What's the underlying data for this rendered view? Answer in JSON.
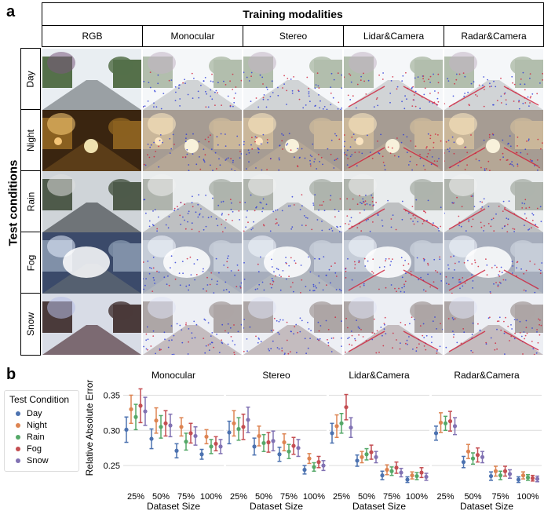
{
  "figure": {
    "panel_a_label": "a",
    "panel_b_label": "b",
    "header_title": "Training modalities",
    "side_title": "Test conditions",
    "training_modalities": [
      "RGB",
      "Monocular",
      "Stereo",
      "Lidar&Camera",
      "Radar&Camera"
    ],
    "test_conditions": [
      "Day",
      "Night",
      "Rain",
      "Fog",
      "Snow"
    ]
  },
  "colors": {
    "day": "#4c72b0",
    "night": "#dd8452",
    "rain": "#55a868",
    "fog": "#c44e52",
    "snow": "#8172b3"
  },
  "legend": {
    "title": "Test Condition",
    "items": [
      "Day",
      "Night",
      "Rain",
      "Fog",
      "Snow"
    ]
  },
  "chart_data": [
    {
      "type": "scatter",
      "title": "Monocular",
      "xlabel": "Dataset Size",
      "ylabel": "Relative Absolute Error",
      "categories": [
        "25%",
        "50%",
        "75%",
        "100%"
      ],
      "ylim": [
        0.22,
        0.365
      ],
      "yticks": [
        "0.35",
        "0.30",
        "0.25"
      ],
      "series": [
        {
          "name": "Day",
          "values": [
            0.301,
            0.288,
            0.271,
            0.266
          ],
          "err": [
            0.018,
            0.014,
            0.01,
            0.007
          ]
        },
        {
          "name": "Night",
          "values": [
            0.33,
            0.314,
            0.305,
            0.291
          ],
          "err": [
            0.02,
            0.018,
            0.013,
            0.01
          ]
        },
        {
          "name": "Rain",
          "values": [
            0.319,
            0.305,
            0.284,
            0.277
          ],
          "err": [
            0.018,
            0.016,
            0.012,
            0.01
          ]
        },
        {
          "name": "Fog",
          "values": [
            0.335,
            0.31,
            0.296,
            0.281
          ],
          "err": [
            0.024,
            0.018,
            0.014,
            0.01
          ]
        },
        {
          "name": "Snow",
          "values": [
            0.327,
            0.307,
            0.292,
            0.277
          ],
          "err": [
            0.02,
            0.016,
            0.013,
            0.01
          ]
        }
      ]
    },
    {
      "type": "scatter",
      "title": "Stereo",
      "xlabel": "Dataset Size",
      "ylabel": "",
      "categories": [
        "25%",
        "50%",
        "75%",
        "100%"
      ],
      "ylim": [
        0.22,
        0.365
      ],
      "yticks": [
        "0.35",
        "0.30",
        "0.25"
      ],
      "series": [
        {
          "name": "Day",
          "values": [
            0.297,
            0.277,
            0.266,
            0.244
          ],
          "err": [
            0.016,
            0.012,
            0.01,
            0.006
          ]
        },
        {
          "name": "Night",
          "values": [
            0.31,
            0.292,
            0.283,
            0.26
          ],
          "err": [
            0.018,
            0.014,
            0.012,
            0.007
          ]
        },
        {
          "name": "Rain",
          "values": [
            0.302,
            0.282,
            0.27,
            0.248
          ],
          "err": [
            0.016,
            0.012,
            0.01,
            0.006
          ]
        },
        {
          "name": "Fog",
          "values": [
            0.305,
            0.283,
            0.278,
            0.255
          ],
          "err": [
            0.018,
            0.014,
            0.012,
            0.008
          ]
        },
        {
          "name": "Snow",
          "values": [
            0.315,
            0.285,
            0.275,
            0.25
          ],
          "err": [
            0.018,
            0.014,
            0.012,
            0.007
          ]
        }
      ]
    },
    {
      "type": "scatter",
      "title": "Lidar&Camera",
      "xlabel": "Dataset Size",
      "ylabel": "",
      "categories": [
        "25%",
        "50%",
        "75%",
        "100%"
      ],
      "ylim": [
        0.22,
        0.365
      ],
      "yticks": [
        "0.35",
        "0.30",
        "0.25"
      ],
      "series": [
        {
          "name": "Day",
          "values": [
            0.296,
            0.257,
            0.236,
            0.23
          ],
          "err": [
            0.014,
            0.008,
            0.006,
            0.004
          ]
        },
        {
          "name": "Night",
          "values": [
            0.306,
            0.262,
            0.244,
            0.236
          ],
          "err": [
            0.016,
            0.008,
            0.007,
            0.005
          ]
        },
        {
          "name": "Rain",
          "values": [
            0.31,
            0.266,
            0.242,
            0.235
          ],
          "err": [
            0.014,
            0.008,
            0.006,
            0.005
          ]
        },
        {
          "name": "Fog",
          "values": [
            0.333,
            0.269,
            0.247,
            0.24
          ],
          "err": [
            0.018,
            0.01,
            0.008,
            0.007
          ]
        },
        {
          "name": "Snow",
          "values": [
            0.304,
            0.262,
            0.24,
            0.234
          ],
          "err": [
            0.014,
            0.008,
            0.006,
            0.005
          ]
        }
      ]
    },
    {
      "type": "scatter",
      "title": "Radar&Camera",
      "xlabel": "Dataset Size",
      "ylabel": "",
      "categories": [
        "25%",
        "50%",
        "75%",
        "100%"
      ],
      "ylim": [
        0.22,
        0.365
      ],
      "yticks": [
        "0.35",
        "0.30",
        "0.25"
      ],
      "series": [
        {
          "name": "Day",
          "values": [
            0.296,
            0.255,
            0.235,
            0.23
          ],
          "err": [
            0.01,
            0.008,
            0.006,
            0.004
          ]
        },
        {
          "name": "Night",
          "values": [
            0.311,
            0.27,
            0.242,
            0.236
          ],
          "err": [
            0.014,
            0.01,
            0.007,
            0.005
          ]
        },
        {
          "name": "Rain",
          "values": [
            0.31,
            0.26,
            0.236,
            0.233
          ],
          "err": [
            0.01,
            0.008,
            0.006,
            0.004
          ]
        },
        {
          "name": "Fog",
          "values": [
            0.313,
            0.265,
            0.242,
            0.232
          ],
          "err": [
            0.014,
            0.01,
            0.007,
            0.004
          ]
        },
        {
          "name": "Snow",
          "values": [
            0.306,
            0.262,
            0.238,
            0.231
          ],
          "err": [
            0.012,
            0.008,
            0.006,
            0.004
          ]
        }
      ]
    }
  ]
}
